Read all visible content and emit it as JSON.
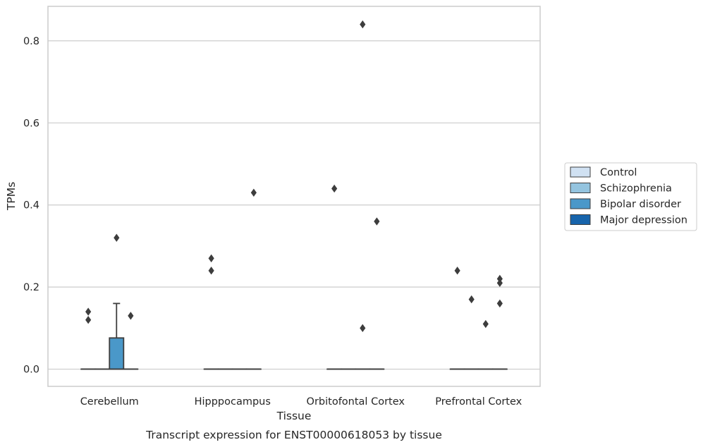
{
  "chart_data": {
    "type": "box",
    "xlabel": "Tissue",
    "ylabel": "TPMs",
    "caption": "Transcript expression for ENST00000618053 by tissue",
    "categories": [
      "Cerebellum",
      "Hipppocampus",
      "Orbitofontal Cortex",
      "Prefrontal Cortex"
    ],
    "ylim": [
      -0.042,
      0.884
    ],
    "yticks": [
      0.0,
      0.2,
      0.4,
      0.6,
      0.8
    ],
    "ytick_labels": [
      "0.0",
      "0.2",
      "0.4",
      "0.6",
      "0.8"
    ],
    "grid": "horizontal",
    "legend_position": "right",
    "series": [
      {
        "name": "Control",
        "color": "#d0e1f2",
        "boxes": [
          {
            "q1": 0,
            "median": 0,
            "q3": 0,
            "whisker_low": 0,
            "whisker_high": 0,
            "outliers": [
              0.14,
              0.12
            ]
          },
          {
            "q1": 0,
            "median": 0,
            "q3": 0,
            "whisker_low": 0,
            "whisker_high": 0,
            "outliers": [
              0.27,
              0.24
            ]
          },
          {
            "q1": 0,
            "median": 0,
            "q3": 0,
            "whisker_low": 0,
            "whisker_high": 0,
            "outliers": [
              0.44
            ]
          },
          {
            "q1": 0,
            "median": 0,
            "q3": 0,
            "whisker_low": 0,
            "whisker_high": 0,
            "outliers": [
              0.24
            ]
          }
        ]
      },
      {
        "name": "Schizophrenia",
        "color": "#94c4df",
        "boxes": [
          {
            "q1": 0,
            "median": 0,
            "q3": 0,
            "whisker_low": 0,
            "whisker_high": 0,
            "outliers": []
          },
          {
            "q1": 0,
            "median": 0,
            "q3": 0,
            "whisker_low": 0,
            "whisker_high": 0,
            "outliers": []
          },
          {
            "q1": 0,
            "median": 0,
            "q3": 0,
            "whisker_low": 0,
            "whisker_high": 0,
            "outliers": []
          },
          {
            "q1": 0,
            "median": 0,
            "q3": 0,
            "whisker_low": 0,
            "whisker_high": 0,
            "outliers": [
              0.17
            ]
          }
        ]
      },
      {
        "name": "Bipolar disorder",
        "color": "#4a98c9",
        "boxes": [
          {
            "q1": 0,
            "median": 0,
            "q3": 0.076,
            "whisker_low": 0,
            "whisker_high": 0.16,
            "outliers": [
              0.32
            ]
          },
          {
            "q1": 0,
            "median": 0,
            "q3": 0,
            "whisker_low": 0,
            "whisker_high": 0,
            "outliers": []
          },
          {
            "q1": 0,
            "median": 0,
            "q3": 0,
            "whisker_low": 0,
            "whisker_high": 0,
            "outliers": [
              0.84,
              0.1
            ]
          },
          {
            "q1": 0,
            "median": 0,
            "q3": 0,
            "whisker_low": 0,
            "whisker_high": 0,
            "outliers": [
              0.11
            ]
          }
        ]
      },
      {
        "name": "Major depression",
        "color": "#1764ab",
        "boxes": [
          {
            "q1": 0,
            "median": 0,
            "q3": 0,
            "whisker_low": 0,
            "whisker_high": 0,
            "outliers": [
              0.13
            ]
          },
          {
            "q1": 0,
            "median": 0,
            "q3": 0,
            "whisker_low": 0,
            "whisker_high": 0,
            "outliers": [
              0.43
            ]
          },
          {
            "q1": 0,
            "median": 0,
            "q3": 0,
            "whisker_low": 0,
            "whisker_high": 0,
            "outliers": [
              0.36
            ]
          },
          {
            "q1": 0,
            "median": 0,
            "q3": 0,
            "whisker_low": 0,
            "whisker_high": 0,
            "outliers": [
              0.22,
              0.21,
              0.16
            ]
          }
        ]
      }
    ],
    "colors": {
      "grid": "#cccccc",
      "frame": "#cccccc",
      "box_edge": "#3d3d3d",
      "outlier": "#3d3d3d",
      "text": "#262626"
    }
  }
}
